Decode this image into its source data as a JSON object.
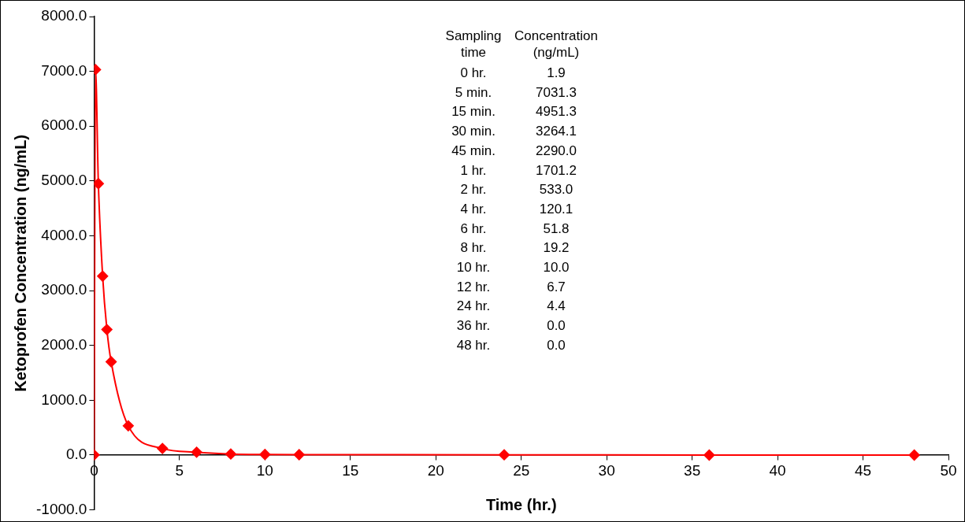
{
  "chart_data": {
    "type": "line",
    "xlabel": "Time (hr.)",
    "ylabel": "Ketoprofen Concentration (ng/mL)",
    "x": [
      0,
      0.0833,
      0.25,
      0.5,
      0.75,
      1,
      2,
      4,
      6,
      8,
      10,
      12,
      24,
      36,
      48
    ],
    "values": [
      1.9,
      7031.3,
      4951.3,
      3264.1,
      2290.0,
      1701.2,
      533.0,
      120.1,
      51.8,
      19.2,
      10.0,
      6.7,
      4.4,
      0.0,
      0.0
    ],
    "color": "#ff0000",
    "marker": "diamond",
    "line_style": "solid",
    "grid": false,
    "xlim": [
      0,
      50
    ],
    "xticks": [
      0,
      5,
      10,
      15,
      20,
      25,
      30,
      35,
      40,
      45,
      50
    ],
    "ylim": [
      -1000,
      8000
    ],
    "yticks": [
      {
        "value": -1000,
        "label": "-1000.0"
      },
      {
        "value": 0,
        "label": "0.0"
      },
      {
        "value": 1000,
        "label": "1000.0"
      },
      {
        "value": 2000,
        "label": "2000.0"
      },
      {
        "value": 3000,
        "label": "3000.0"
      },
      {
        "value": 4000,
        "label": "4000.0"
      },
      {
        "value": 5000,
        "label": "5000.0"
      },
      {
        "value": 6000,
        "label": "6000.0"
      },
      {
        "value": 7000,
        "label": "7000.0"
      },
      {
        "value": 8000,
        "label": "8000.0"
      }
    ],
    "annotations": [
      "Sampling time",
      "Concentration (ng/mL)",
      "0 hr.",
      "1.9",
      "5 min.",
      "7031.3",
      "15 min.",
      "4951.3",
      "30 min.",
      "3264.1",
      "45 min.",
      "2290.0",
      "1 hr.",
      "1701.2",
      "2 hr.",
      "533.0",
      "4 hr.",
      "120.1",
      "6 hr.",
      "51.8",
      "8 hr.",
      "19.2",
      "10 hr.",
      "10.0",
      "12 hr.",
      "6.7",
      "24 hr.",
      "4.4",
      "36 hr.",
      "0.0",
      "48 hr.",
      "0.0"
    ]
  }
}
